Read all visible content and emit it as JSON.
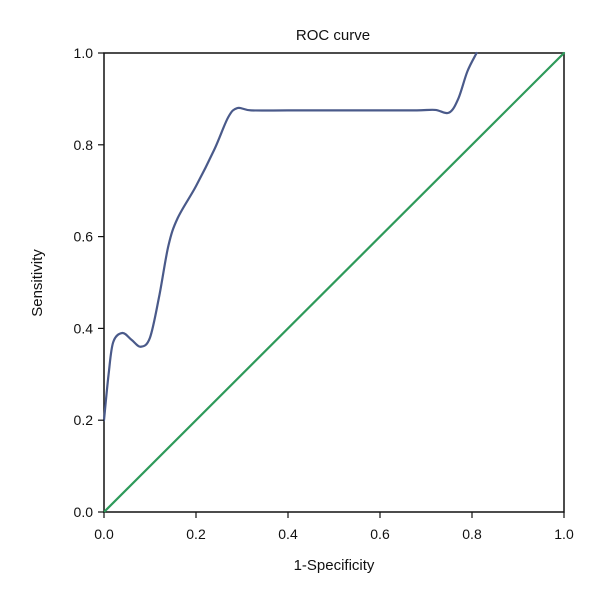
{
  "chart_data": {
    "type": "line",
    "title": "ROC curve",
    "xlabel": "1-Specificity",
    "ylabel": "Sensitivity",
    "xlim": [
      0,
      1
    ],
    "ylim": [
      0,
      1
    ],
    "x_ticks": [
      "0.0",
      "0.2",
      "0.4",
      "0.6",
      "0.8",
      "1.0"
    ],
    "y_ticks": [
      "0.0",
      "0.2",
      "0.4",
      "0.6",
      "0.8",
      "1.0"
    ],
    "grid": false,
    "series": [
      {
        "color": "#4a5a8a",
        "x": [
          0.0,
          0.01,
          0.02,
          0.04,
          0.06,
          0.08,
          0.1,
          0.12,
          0.14,
          0.16,
          0.2,
          0.24,
          0.27,
          0.29,
          0.32,
          0.4,
          0.5,
          0.6,
          0.68,
          0.72,
          0.75,
          0.77,
          0.79,
          0.81
        ],
        "y": [
          0.2,
          0.3,
          0.37,
          0.39,
          0.375,
          0.36,
          0.38,
          0.47,
          0.58,
          0.64,
          0.71,
          0.79,
          0.86,
          0.88,
          0.875,
          0.875,
          0.875,
          0.875,
          0.875,
          0.876,
          0.87,
          0.9,
          0.96,
          1.0
        ]
      },
      {
        "color": "#2e9a5a",
        "x": [
          0,
          1
        ],
        "y": [
          0,
          1
        ]
      }
    ]
  }
}
